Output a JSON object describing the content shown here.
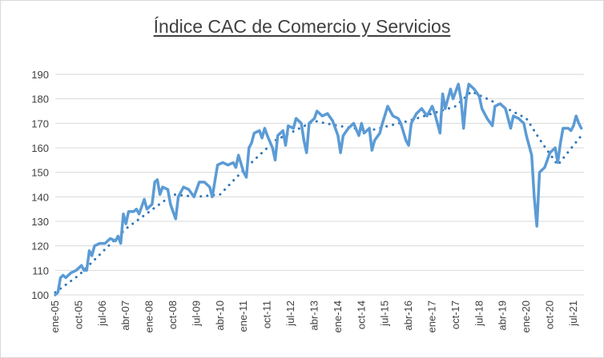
{
  "chart_data": {
    "type": "line",
    "title": "Índice CAC de Comercio y Servicios",
    "xlabel": "",
    "ylabel": "",
    "ylim": [
      100,
      190
    ],
    "yticks": [
      100,
      110,
      120,
      130,
      140,
      150,
      160,
      170,
      180,
      190
    ],
    "x_tick_labels": [
      "ene-05",
      "oct-05",
      "jul-06",
      "abr-07",
      "ene-08",
      "oct-08",
      "jul-09",
      "abr-10",
      "ene-11",
      "oct-11",
      "jul-12",
      "abr-13",
      "ene-14",
      "oct-14",
      "jul-15",
      "abr-16",
      "ene-17",
      "oct-17",
      "jul-18",
      "abr-19",
      "ene-20",
      "oct-20",
      "jul-21"
    ],
    "grid": "horizontal",
    "legend": "none",
    "colors": {
      "series": "#5b9bd5",
      "trend": "#2e75b6",
      "grid": "#d9d9d9",
      "text": "#404040"
    },
    "x_start": "2005-01",
    "series": [
      {
        "name": "",
        "style": "solid",
        "anchors": [
          [
            "2005-01",
            100
          ],
          [
            "2005-02",
            101
          ],
          [
            "2005-03",
            107
          ],
          [
            "2005-04",
            108
          ],
          [
            "2005-05",
            107
          ],
          [
            "2005-07",
            109
          ],
          [
            "2005-09",
            110
          ],
          [
            "2005-11",
            112
          ],
          [
            "2005-12",
            110
          ],
          [
            "2006-01",
            110
          ],
          [
            "2006-02",
            118
          ],
          [
            "2006-03",
            116
          ],
          [
            "2006-04",
            120
          ],
          [
            "2006-06",
            121
          ],
          [
            "2006-08",
            121
          ],
          [
            "2006-10",
            123
          ],
          [
            "2006-12",
            122
          ],
          [
            "2007-01",
            124
          ],
          [
            "2007-02",
            121
          ],
          [
            "2007-03",
            133
          ],
          [
            "2007-04",
            129
          ],
          [
            "2007-05",
            134
          ],
          [
            "2007-07",
            134
          ],
          [
            "2007-08",
            135
          ],
          [
            "2007-09",
            133
          ],
          [
            "2007-11",
            139
          ],
          [
            "2007-12",
            135
          ],
          [
            "2008-02",
            137
          ],
          [
            "2008-03",
            146
          ],
          [
            "2008-04",
            147
          ],
          [
            "2008-05",
            141
          ],
          [
            "2008-06",
            144
          ],
          [
            "2008-08",
            143
          ],
          [
            "2008-09",
            137
          ],
          [
            "2008-10",
            134
          ],
          [
            "2008-11",
            131
          ],
          [
            "2008-12",
            140
          ],
          [
            "2009-02",
            144
          ],
          [
            "2009-04",
            143
          ],
          [
            "2009-06",
            140
          ],
          [
            "2009-08",
            146
          ],
          [
            "2009-10",
            146
          ],
          [
            "2009-12",
            144
          ],
          [
            "2010-01",
            140
          ],
          [
            "2010-03",
            153
          ],
          [
            "2010-05",
            154
          ],
          [
            "2010-07",
            153
          ],
          [
            "2010-09",
            154
          ],
          [
            "2010-10",
            152
          ],
          [
            "2010-11",
            157
          ],
          [
            "2011-01",
            150
          ],
          [
            "2011-02",
            148
          ],
          [
            "2011-03",
            160
          ],
          [
            "2011-04",
            162
          ],
          [
            "2011-05",
            166
          ],
          [
            "2011-07",
            167
          ],
          [
            "2011-08",
            164
          ],
          [
            "2011-09",
            168
          ],
          [
            "2011-10",
            165
          ],
          [
            "2011-12",
            160
          ],
          [
            "2012-01",
            155
          ],
          [
            "2012-02",
            165
          ],
          [
            "2012-04",
            167
          ],
          [
            "2012-05",
            161
          ],
          [
            "2012-06",
            169
          ],
          [
            "2012-08",
            168
          ],
          [
            "2012-09",
            172
          ],
          [
            "2012-11",
            170
          ],
          [
            "2012-12",
            163
          ],
          [
            "2013-01",
            158
          ],
          [
            "2013-02",
            170
          ],
          [
            "2013-04",
            172
          ],
          [
            "2013-05",
            175
          ],
          [
            "2013-07",
            173
          ],
          [
            "2013-09",
            174
          ],
          [
            "2013-11",
            171
          ],
          [
            "2013-12",
            168
          ],
          [
            "2014-01",
            165
          ],
          [
            "2014-02",
            158
          ],
          [
            "2014-03",
            165
          ],
          [
            "2014-05",
            168
          ],
          [
            "2014-07",
            170
          ],
          [
            "2014-09",
            165
          ],
          [
            "2014-10",
            170
          ],
          [
            "2014-11",
            166
          ],
          [
            "2015-01",
            168
          ],
          [
            "2015-02",
            159
          ],
          [
            "2015-03",
            163
          ],
          [
            "2015-05",
            166
          ],
          [
            "2015-06",
            170
          ],
          [
            "2015-08",
            177
          ],
          [
            "2015-09",
            175
          ],
          [
            "2015-10",
            173
          ],
          [
            "2015-12",
            172
          ],
          [
            "2016-01",
            170
          ],
          [
            "2016-03",
            163
          ],
          [
            "2016-04",
            161
          ],
          [
            "2016-05",
            170
          ],
          [
            "2016-07",
            174
          ],
          [
            "2016-09",
            176
          ],
          [
            "2016-11",
            173
          ],
          [
            "2017-01",
            177
          ],
          [
            "2017-02",
            174
          ],
          [
            "2017-04",
            166
          ],
          [
            "2017-05",
            182
          ],
          [
            "2017-06",
            176
          ],
          [
            "2017-08",
            184
          ],
          [
            "2017-09",
            180
          ],
          [
            "2017-11",
            186
          ],
          [
            "2017-12",
            180
          ],
          [
            "2018-01",
            168
          ],
          [
            "2018-02",
            180
          ],
          [
            "2018-03",
            186
          ],
          [
            "2018-05",
            184
          ],
          [
            "2018-07",
            181
          ],
          [
            "2018-08",
            176
          ],
          [
            "2018-10",
            172
          ],
          [
            "2018-12",
            169
          ],
          [
            "2019-01",
            177
          ],
          [
            "2019-03",
            178
          ],
          [
            "2019-05",
            176
          ],
          [
            "2019-07",
            168
          ],
          [
            "2019-08",
            173
          ],
          [
            "2019-10",
            172
          ],
          [
            "2019-12",
            170
          ],
          [
            "2020-01",
            165
          ],
          [
            "2020-03",
            157
          ],
          [
            "2020-04",
            140
          ],
          [
            "2020-05",
            128
          ],
          [
            "2020-06",
            150
          ],
          [
            "2020-08",
            152
          ],
          [
            "2020-10",
            158
          ],
          [
            "2020-12",
            160
          ],
          [
            "2021-01",
            154
          ],
          [
            "2021-02",
            162
          ],
          [
            "2021-03",
            168
          ],
          [
            "2021-05",
            168
          ],
          [
            "2021-06",
            167
          ],
          [
            "2021-07",
            169
          ],
          [
            "2021-08",
            173
          ],
          [
            "2021-09",
            170
          ],
          [
            "2021-10",
            168
          ]
        ]
      },
      {
        "name": "",
        "style": "dotted",
        "anchors": [
          [
            "2005-01",
            101
          ],
          [
            "2005-10",
            108
          ],
          [
            "2007-04",
            127
          ],
          [
            "2008-10",
            141
          ],
          [
            "2009-07",
            140
          ],
          [
            "2010-04",
            141
          ],
          [
            "2011-01",
            151
          ],
          [
            "2012-01",
            163
          ],
          [
            "2013-04",
            171
          ],
          [
            "2014-01",
            169
          ],
          [
            "2015-01",
            167
          ],
          [
            "2016-04",
            171
          ],
          [
            "2017-10",
            177
          ],
          [
            "2018-04",
            183
          ],
          [
            "2019-02",
            178
          ],
          [
            "2020-01",
            172
          ],
          [
            "2020-07",
            162
          ],
          [
            "2021-01",
            153
          ],
          [
            "2021-10",
            165
          ]
        ]
      }
    ]
  }
}
